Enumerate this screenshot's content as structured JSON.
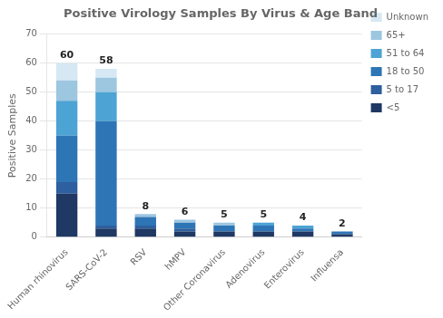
{
  "chart_data": {
    "type": "bar",
    "title": "Positive Virology Samples By Virus & Age Band",
    "ylabel": "Positive Samples",
    "categories": [
      "Human rhinovirus",
      "SARS-CoV-2",
      "RSV",
      "hMPV",
      "Other Coronavirus",
      "Adenovirus",
      "Enterovirus",
      "Influensa"
    ],
    "series": [
      {
        "name": "<5",
        "color": "#1f3864",
        "values": [
          15,
          3,
          3,
          2,
          2,
          2,
          2,
          1
        ]
      },
      {
        "name": "5 to 17",
        "color": "#2e5f9e",
        "values": [
          4,
          1,
          1,
          1,
          0,
          0,
          0,
          0
        ]
      },
      {
        "name": "18 to 50",
        "color": "#2e75b6",
        "values": [
          16,
          36,
          3,
          2,
          2,
          2,
          1,
          1
        ]
      },
      {
        "name": "51 to 64",
        "color": "#4da3d4",
        "values": [
          12,
          10,
          0,
          0,
          0,
          1,
          1,
          0
        ]
      },
      {
        "name": "65+",
        "color": "#9dc6e0",
        "values": [
          7,
          5,
          1,
          1,
          1,
          0,
          0,
          0
        ]
      },
      {
        "name": "Unknown",
        "color": "#d5e8f3",
        "values": [
          6,
          3,
          0,
          0,
          0,
          0,
          0,
          0
        ]
      }
    ],
    "totals": [
      60,
      58,
      8,
      6,
      5,
      5,
      4,
      2
    ],
    "stacked": true,
    "ylim": [
      0,
      70
    ],
    "yticks": [
      0,
      10,
      20,
      30,
      40,
      50,
      60,
      70
    ],
    "grid": true,
    "legend": "upper right"
  }
}
